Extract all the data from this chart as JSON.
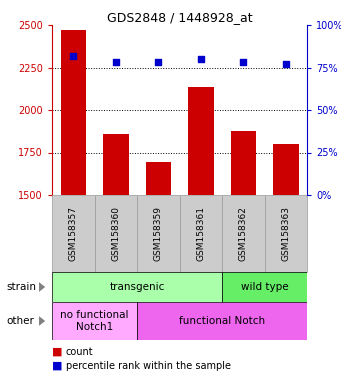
{
  "title": "GDS2848 / 1448928_at",
  "samples": [
    "GSM158357",
    "GSM158360",
    "GSM158359",
    "GSM158361",
    "GSM158362",
    "GSM158363"
  ],
  "counts": [
    2470,
    1860,
    1695,
    2135,
    1875,
    1800
  ],
  "percentiles": [
    82,
    78,
    78,
    80,
    78,
    77
  ],
  "ylim_left": [
    1500,
    2500
  ],
  "ylim_right": [
    0,
    100
  ],
  "yticks_left": [
    1500,
    1750,
    2000,
    2250,
    2500
  ],
  "yticks_right": [
    0,
    25,
    50,
    75,
    100
  ],
  "bar_color": "#cc0000",
  "dot_color": "#0000cc",
  "strain_label_transgenic": "transgenic",
  "strain_label_wildtype": "wild type",
  "other_label_nofunc": "no functional\nNotch1",
  "other_label_func": "functional Notch",
  "color_transgenic": "#aaffaa",
  "color_wildtype": "#66ee66",
  "color_nofunc": "#ffaaff",
  "color_func": "#ee66ee",
  "color_xtick_bg": "#cccccc",
  "color_xtick_border": "#999999",
  "legend_count": "count",
  "legend_percentile": "percentile rank within the sample",
  "ylabel_left_color": "#cc0000",
  "ylabel_right_color": "#0000cc",
  "title_fontsize": 9,
  "tick_fontsize": 7,
  "label_fontsize": 7.5,
  "xtick_fontsize": 6.5
}
